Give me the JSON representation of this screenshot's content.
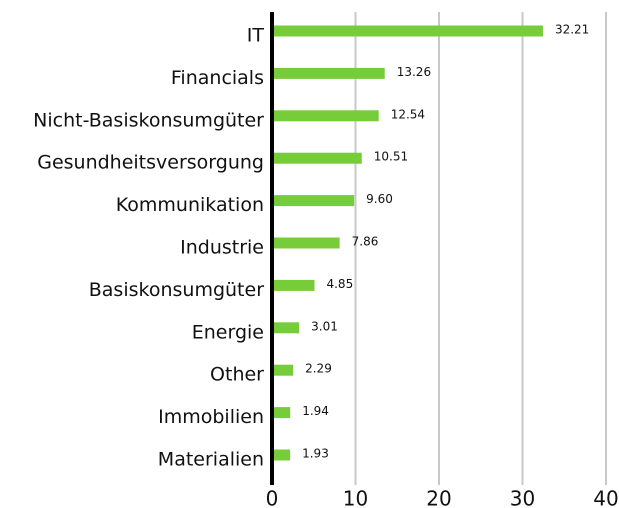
{
  "chart_data": {
    "type": "barh",
    "categories": [
      "IT",
      "Financials",
      "Nicht-Basiskonsumgüter",
      "Gesundheitsversorgung",
      "Kommunikation",
      "Industrie",
      "Basiskonsumgüter",
      "Energie",
      "Other",
      "Immobilien",
      "Materialien"
    ],
    "values": [
      32.21,
      13.26,
      12.54,
      10.51,
      9.6,
      7.86,
      4.85,
      3.01,
      2.29,
      1.94,
      1.93
    ],
    "value_labels": [
      "32.21",
      "13.26",
      "12.54",
      "10.51",
      "9.60",
      "7.86",
      "4.85",
      "3.01",
      "2.29",
      "1.94",
      "1.93"
    ],
    "color": "#77cc3a",
    "xlim": [
      0,
      40
    ],
    "xticks": [
      0,
      10,
      20,
      30,
      40
    ],
    "grid": true
  }
}
